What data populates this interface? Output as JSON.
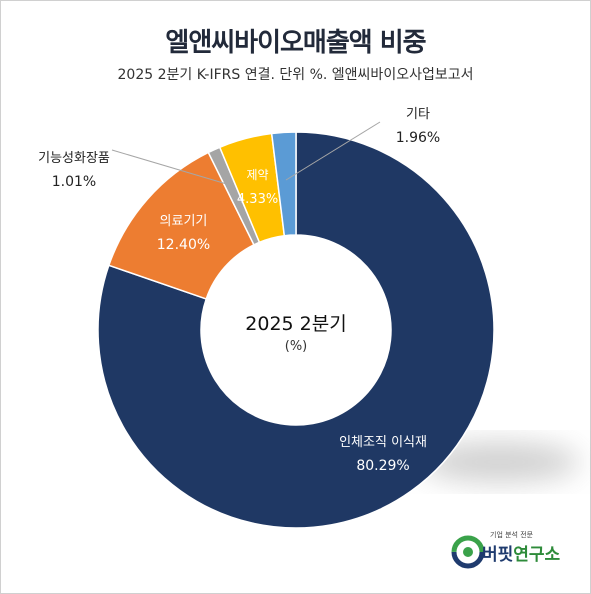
{
  "title": "엘앤씨바이오매출액 비중",
  "subtitle": "2025 2분기 K-IFRS 연결. 단위 %. 엘앤씨바이오사업보고서",
  "center": {
    "line1": "2025 2분기",
    "line2": "(%)"
  },
  "brand": {
    "tagline": "기업 분석 전문",
    "name_a": "버핏",
    "name_b": "연구소"
  },
  "colors": {
    "series": [
      "#1f3864",
      "#ed7d31",
      "#a5a5a5",
      "#ffc000",
      "#5b9bd5"
    ],
    "label_inside": "#ffffff",
    "label_outside": "#222222"
  },
  "chart_data": {
    "type": "pie",
    "title": "엘앤씨바이오매출액 비중",
    "subtitle": "2025 2분기 K-IFRS 연결. 단위 %. 엘앤씨바이오사업보고서",
    "donut": true,
    "start_angle_deg": 0,
    "direction": "clockwise",
    "slices": [
      {
        "label": "인체조직 이식재",
        "value": 80.29,
        "value_text": "80.29%"
      },
      {
        "label": "의료기기",
        "value": 12.4,
        "value_text": "12.40%"
      },
      {
        "label": "기능성화장품",
        "value": 1.01,
        "value_text": "1.01%"
      },
      {
        "label": "제약",
        "value": 4.33,
        "value_text": "4.33%"
      },
      {
        "label": "기타",
        "value": 1.96,
        "value_text": "1.96%"
      }
    ]
  }
}
